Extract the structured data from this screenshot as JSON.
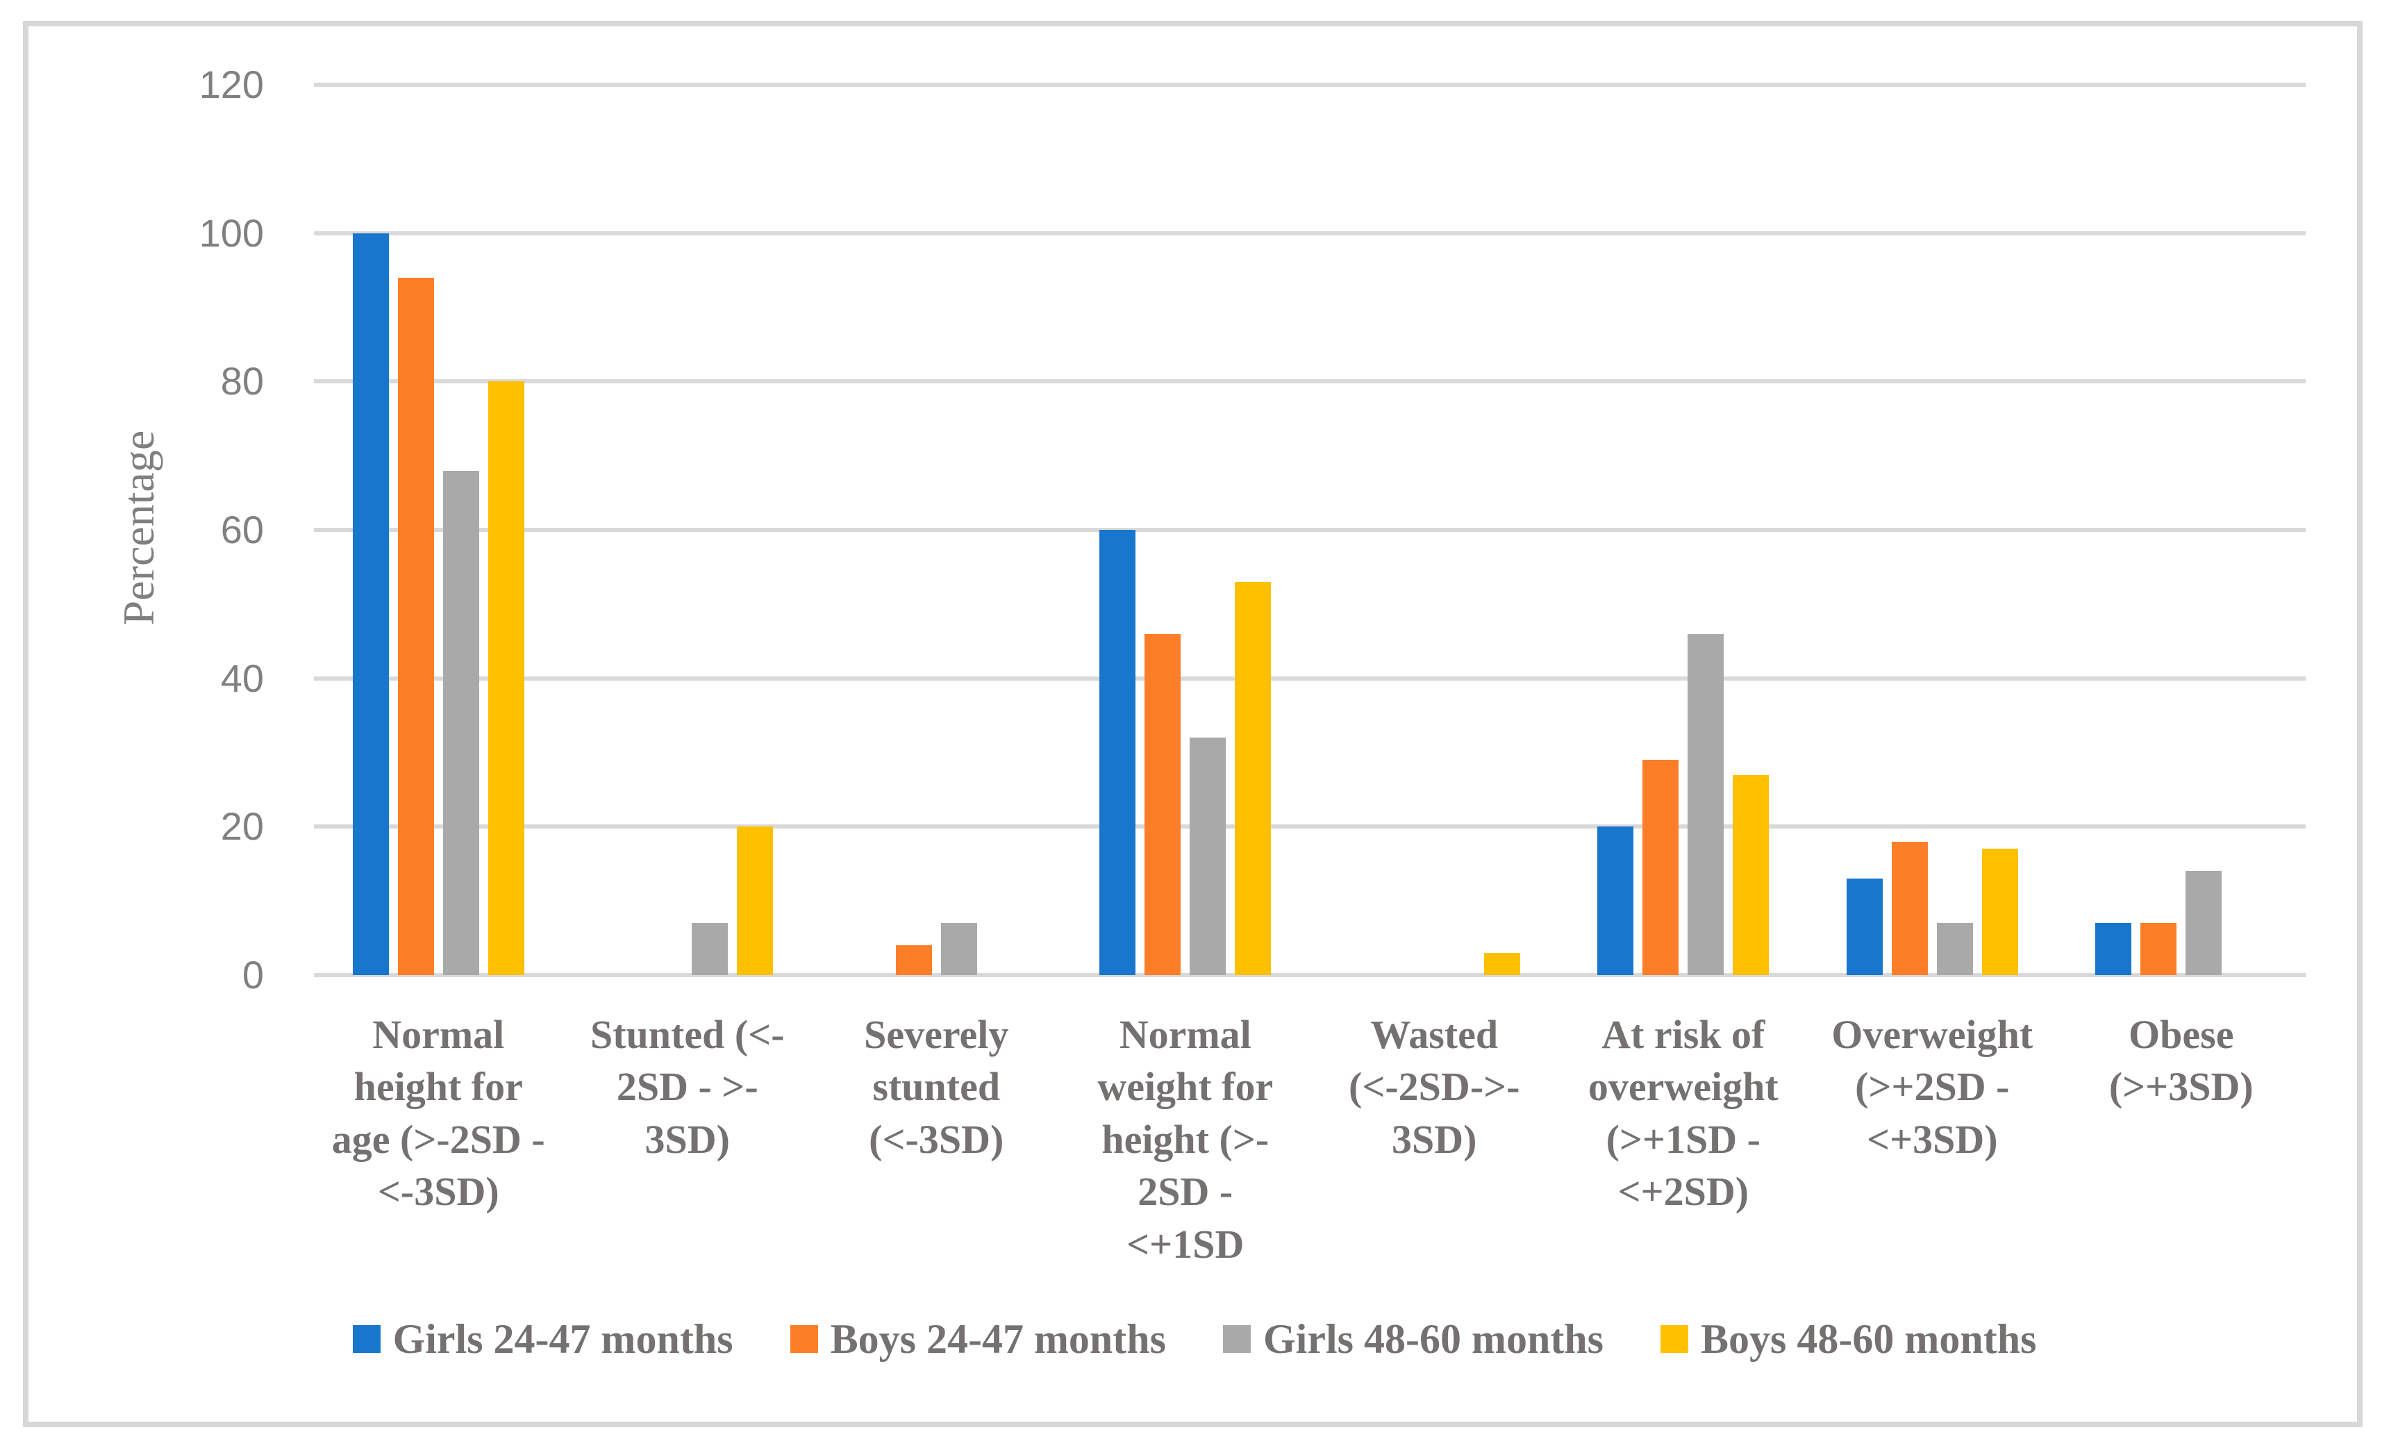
{
  "chart_data": {
    "type": "bar",
    "title": "",
    "y_axis_title": "Percentage",
    "ylim": [
      0,
      120
    ],
    "y_ticks": [
      0,
      20,
      40,
      60,
      80,
      100,
      120
    ],
    "grid": "horizontal",
    "legend_position": "bottom",
    "categories": [
      "Normal\nheight for\nage (>-2SD -\n<-3SD)",
      "Stunted (<-\n2SD - >-\n3SD)",
      "Severely\nstunted\n(<-3SD)",
      "Normal\nweight for\nheight (>-\n2SD -\n<+1SD",
      "Wasted\n(<-2SD->-\n3SD)",
      "At risk of\noverweight\n(>+1SD -\n<+2SD)",
      "Overweight\n(>+2SD -\n<+3SD)",
      "Obese\n(>+3SD)"
    ],
    "series": [
      {
        "name": "Girls 24-47 months",
        "color": "#1876CD",
        "values": [
          100,
          0,
          0,
          60,
          0,
          20,
          13,
          7
        ]
      },
      {
        "name": "Boys 24-47 months",
        "color": "#FC7E28",
        "values": [
          94,
          0,
          4,
          46,
          0,
          29,
          18,
          7
        ]
      },
      {
        "name": "Girls 48-60 months",
        "color": "#A9A9A9",
        "values": [
          68,
          7,
          7,
          32,
          0,
          46,
          7,
          14
        ]
      },
      {
        "name": "Boys 48-60 months",
        "color": "#FFC000",
        "values": [
          80,
          20,
          0,
          53,
          3,
          27,
          17,
          0
        ]
      }
    ]
  },
  "colors": {
    "background": "#FFFFFF",
    "frame_border": "#D8D8D8",
    "gridline": "#D9D9D9",
    "tick_text": "#808080",
    "label_text": "#767171",
    "axis_title_text": "#7F7F7F"
  }
}
